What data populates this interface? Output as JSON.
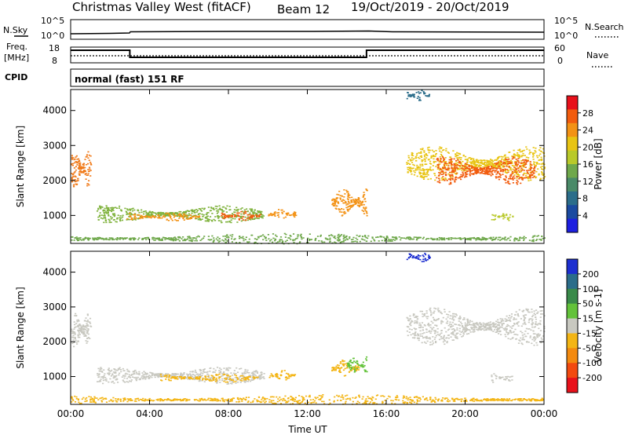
{
  "header": {
    "station": "Christmas Valley West (fitACF)",
    "beam": "Beam 12",
    "dates": "19/Oct/2019 - 20/Oct/2019"
  },
  "summary": {
    "nsky_label": "N.Sky",
    "nsky_ticks": [
      "10^5",
      "10^0"
    ],
    "nsearch_label": "N.Search",
    "nsearch_ticks": [
      "10^5",
      "10^0"
    ],
    "freq_label": [
      "Freq.",
      "[MHz]"
    ],
    "freq_ticks": [
      "18",
      "8"
    ],
    "nave_label": "Nave",
    "nave_ticks": [
      "60",
      "0"
    ],
    "cpid_label": "CPID",
    "cpid_text": "normal (fast) 151 RF",
    "freq_steps": [
      {
        "start": 0.0,
        "end": 3.0,
        "value": "high"
      },
      {
        "start": 3.0,
        "end": 15.0,
        "value": "low"
      },
      {
        "start": 15.0,
        "end": 24.0,
        "value": "high"
      }
    ]
  },
  "chart_data": [
    {
      "type": "heatmap",
      "title": "Power",
      "ylabel": "Slant Range [km]",
      "xlabel": "",
      "x_ticks": [
        "00:00",
        "04:00",
        "08:00",
        "12:00",
        "16:00",
        "20:00",
        "00:00"
      ],
      "y_ticks": [
        1000,
        2000,
        3000,
        4000
      ],
      "xlim_hours": [
        0,
        24
      ],
      "ylim_km": [
        200,
        4600
      ],
      "colorbar_label": "Power [dB]",
      "colorbar_ticks": [
        "28",
        "24",
        "20",
        "16",
        "12",
        "8",
        "4"
      ],
      "colorbar_colors": [
        "#e8111b",
        "#f25c0e",
        "#f39215",
        "#e8c413",
        "#b9c92a",
        "#6fa84b",
        "#4a8a68",
        "#2b6d8a",
        "#1a4aa0",
        "#1d1fe0"
      ],
      "regions": [
        {
          "t0": 0.0,
          "t1": 1.0,
          "r0": 1800,
          "r1": 2900,
          "color": "#f07a1a"
        },
        {
          "t0": 1.3,
          "t1": 9.8,
          "r0": 800,
          "r1": 1300,
          "color": "#7fb23c"
        },
        {
          "t0": 2.8,
          "t1": 6.5,
          "r0": 850,
          "r1": 1100,
          "color": "#f39215"
        },
        {
          "t0": 7.6,
          "t1": 9.6,
          "r0": 850,
          "r1": 1150,
          "color": "#f25c0e"
        },
        {
          "t0": 10.0,
          "t1": 11.4,
          "r0": 900,
          "r1": 1200,
          "color": "#f39215"
        },
        {
          "t0": 13.2,
          "t1": 15.0,
          "r0": 1000,
          "r1": 1800,
          "color": "#f39215"
        },
        {
          "t0": 17.0,
          "t1": 24.0,
          "r0": 2000,
          "r1": 3000,
          "color": "#e8c413"
        },
        {
          "t0": 18.5,
          "t1": 23.5,
          "r0": 1900,
          "r1": 2700,
          "color": "#f25c0e"
        },
        {
          "t0": 21.3,
          "t1": 22.4,
          "r0": 850,
          "r1": 1100,
          "color": "#b9c92a"
        },
        {
          "t0": 17.0,
          "t1": 18.2,
          "r0": 4300,
          "r1": 4600,
          "color": "#2b6d8a"
        },
        {
          "t0": 0.0,
          "t1": 24.0,
          "r0": 200,
          "r1": 500,
          "color": "#6fa84b"
        }
      ]
    },
    {
      "type": "heatmap",
      "title": "Velocity",
      "ylabel": "Slant Range [km]",
      "xlabel": "Time UT",
      "x_ticks": [
        "00:00",
        "04:00",
        "08:00",
        "12:00",
        "16:00",
        "20:00",
        "00:00"
      ],
      "y_ticks": [
        1000,
        2000,
        3000,
        4000
      ],
      "xlim_hours": [
        0,
        24
      ],
      "ylim_km": [
        200,
        4600
      ],
      "colorbar_label": "Velocity [m s-1]",
      "colorbar_ticks": [
        "200",
        "100",
        "50",
        "15",
        "-15",
        "-50",
        "-100",
        "-200"
      ],
      "colorbar_colors": [
        "#1d2fd0",
        "#2b6d8a",
        "#3a8a4a",
        "#63c23a",
        "#c8c8c0",
        "#f3b515",
        "#f38a10",
        "#f24a10",
        "#e8111b"
      ],
      "regions": [
        {
          "t0": 0.0,
          "t1": 1.0,
          "r0": 1800,
          "r1": 2900,
          "color": "#c8c8c0"
        },
        {
          "t0": 1.3,
          "t1": 9.8,
          "r0": 800,
          "r1": 1300,
          "color": "#c8c8c0"
        },
        {
          "t0": 4.5,
          "t1": 9.6,
          "r0": 850,
          "r1": 1100,
          "color": "#f3b515"
        },
        {
          "t0": 10.0,
          "t1": 11.4,
          "r0": 900,
          "r1": 1200,
          "color": "#f3b515"
        },
        {
          "t0": 13.2,
          "t1": 14.6,
          "r0": 1000,
          "r1": 1500,
          "color": "#f3b515"
        },
        {
          "t0": 14.0,
          "t1": 15.0,
          "r0": 1100,
          "r1": 1600,
          "color": "#63c23a"
        },
        {
          "t0": 17.0,
          "t1": 24.0,
          "r0": 1900,
          "r1": 3000,
          "color": "#c8c8c0"
        },
        {
          "t0": 21.3,
          "t1": 22.4,
          "r0": 850,
          "r1": 1100,
          "color": "#c8c8c0"
        },
        {
          "t0": 17.0,
          "t1": 18.2,
          "r0": 4300,
          "r1": 4600,
          "color": "#1d2fd0"
        },
        {
          "t0": 0.0,
          "t1": 24.0,
          "r0": 200,
          "r1": 500,
          "color": "#f3b515"
        }
      ]
    }
  ]
}
